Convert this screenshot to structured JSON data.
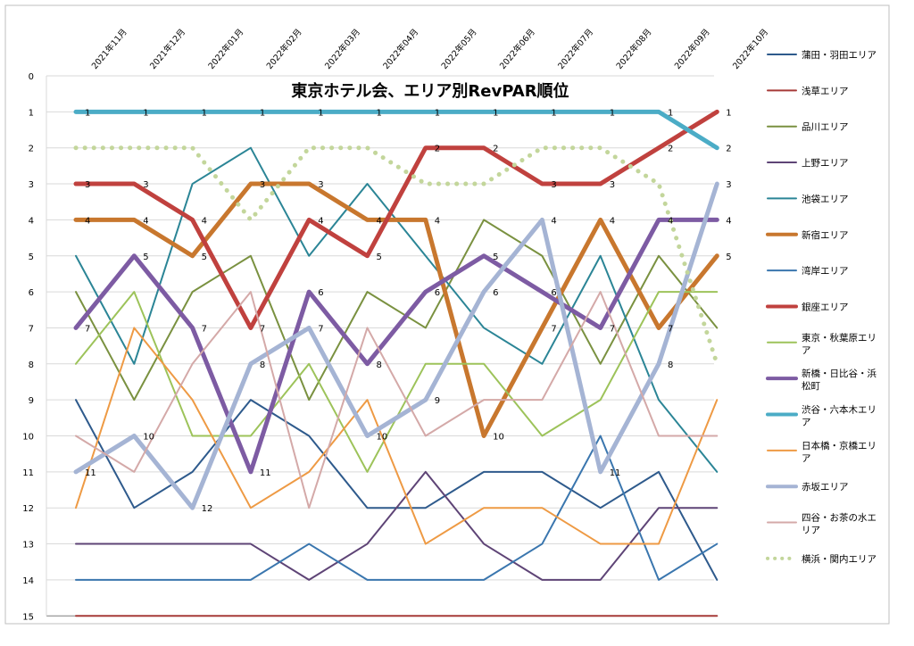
{
  "chart_data": {
    "type": "line",
    "title": "東京ホテル会、エリア別RevPAR順位",
    "categories": [
      "2021年11月",
      "2021年12月",
      "2022年01月",
      "2022年02月",
      "2022年03月",
      "2022年04月",
      "2022年05月",
      "2022年06月",
      "2022年07月",
      "2022年08月",
      "2022年09月",
      "2022年10月"
    ],
    "yticks": [
      0,
      1,
      2,
      3,
      4,
      5,
      6,
      7,
      8,
      9,
      10,
      11,
      12,
      13,
      14,
      15
    ],
    "ylim": [
      0,
      15
    ],
    "y_reversed": true,
    "grid": true,
    "legend_position": "right",
    "series": [
      {
        "name": "蒲田・羽田エリア",
        "color": "#2E5A8C",
        "width": 2,
        "dash": "solid",
        "labels": false,
        "values": [
          9,
          12,
          11,
          9,
          10,
          12,
          12,
          11,
          11,
          12,
          11,
          14
        ]
      },
      {
        "name": "浅草エリア",
        "color": "#A63A38",
        "width": 2,
        "dash": "solid",
        "labels": false,
        "values": [
          15,
          15,
          15,
          15,
          15,
          15,
          15,
          15,
          15,
          15,
          15,
          15
        ]
      },
      {
        "name": "品川エリア",
        "color": "#7A9140",
        "width": 2,
        "dash": "solid",
        "labels": false,
        "values": [
          6,
          9,
          6,
          5,
          9,
          6,
          7,
          4,
          5,
          8,
          5,
          7
        ]
      },
      {
        "name": "上野エリア",
        "color": "#5E4476",
        "width": 2,
        "dash": "solid",
        "labels": false,
        "values": [
          13,
          13,
          13,
          13,
          14,
          13,
          11,
          13,
          14,
          14,
          12,
          12
        ]
      },
      {
        "name": "池袋エリア",
        "color": "#2B8596",
        "width": 2,
        "dash": "solid",
        "labels": false,
        "values": [
          5,
          8,
          3,
          2,
          5,
          3,
          5,
          7,
          8,
          5,
          9,
          11
        ]
      },
      {
        "name": "新宿エリア",
        "color": "#C8772E",
        "width": 5,
        "dash": "solid",
        "labels": true,
        "values": [
          4,
          4,
          5,
          3,
          3,
          4,
          4,
          10,
          7,
          4,
          7,
          5
        ]
      },
      {
        "name": "湾岸エリア",
        "color": "#3A76AE",
        "width": 2,
        "dash": "solid",
        "labels": false,
        "values": [
          14,
          14,
          14,
          14,
          13,
          14,
          14,
          14,
          13,
          10,
          14,
          13
        ]
      },
      {
        "name": "銀座エリア",
        "color": "#C0413E",
        "width": 5,
        "dash": "solid",
        "labels": true,
        "values": [
          3,
          3,
          4,
          7,
          4,
          5,
          2,
          2,
          3,
          3,
          2,
          1
        ]
      },
      {
        "name": "東京・秋葉原エリア",
        "color": "#9DC35A",
        "width": 2,
        "dash": "solid",
        "labels": false,
        "values": [
          8,
          6,
          10,
          10,
          8,
          11,
          8,
          8,
          10,
          9,
          6,
          6
        ]
      },
      {
        "name": "新橋・日比谷・浜松町",
        "color": "#7D5BA3",
        "width": 5,
        "dash": "solid",
        "labels": true,
        "values": [
          7,
          5,
          7,
          11,
          6,
          8,
          6,
          5,
          6,
          7,
          4,
          4
        ]
      },
      {
        "name": "渋谷・六本木エリア",
        "color": "#4BACC6",
        "width": 5,
        "dash": "solid",
        "labels": true,
        "values": [
          1,
          1,
          1,
          1,
          1,
          1,
          1,
          1,
          1,
          1,
          1,
          2
        ]
      },
      {
        "name": "日本橋・京橋エリア",
        "color": "#EE9A44",
        "width": 2,
        "dash": "solid",
        "labels": false,
        "values": [
          12,
          7,
          9,
          12,
          11,
          9,
          13,
          12,
          12,
          13,
          13,
          9
        ]
      },
      {
        "name": "赤坂エリア",
        "color": "#A5B4D4",
        "width": 5,
        "dash": "solid",
        "labels": true,
        "values": [
          11,
          10,
          12,
          8,
          7,
          10,
          9,
          6,
          4,
          11,
          8,
          3
        ]
      },
      {
        "name": "四谷・お茶の水エリア",
        "color": "#D4A9A8",
        "width": 2,
        "dash": "solid",
        "labels": false,
        "values": [
          10,
          11,
          8,
          6,
          12,
          7,
          10,
          9,
          9,
          6,
          10,
          10
        ]
      },
      {
        "name": "横浜・関内エリア",
        "color": "#C3D69B",
        "width": 5,
        "dash": "dotted",
        "labels": false,
        "values": [
          2,
          2,
          2,
          4,
          2,
          2,
          3,
          3,
          2,
          2,
          3,
          8
        ]
      }
    ]
  },
  "legend": {
    "items": [
      {
        "lines": [
          "蒲田・羽田エリア"
        ]
      },
      {
        "lines": [
          "浅草エリア"
        ]
      },
      {
        "lines": [
          "品川エリア"
        ]
      },
      {
        "lines": [
          "上野エリア"
        ]
      },
      {
        "lines": [
          "池袋エリア"
        ]
      },
      {
        "lines": [
          "新宿エリア"
        ]
      },
      {
        "lines": [
          "湾岸エリア"
        ]
      },
      {
        "lines": [
          "銀座エリア"
        ]
      },
      {
        "lines": [
          "東京・秋葉原エリ",
          "ア"
        ]
      },
      {
        "lines": [
          "新橋・日比谷・浜",
          "松町"
        ]
      },
      {
        "lines": [
          "渋谷・六本木エリ",
          "ア"
        ]
      },
      {
        "lines": [
          "日本橋・京橋エリ",
          "ア"
        ]
      },
      {
        "lines": [
          "赤坂エリア"
        ]
      },
      {
        "lines": [
          "四谷・お茶の水エ",
          "リア"
        ]
      },
      {
        "lines": [
          "横浜・関内エリア"
        ]
      }
    ]
  }
}
